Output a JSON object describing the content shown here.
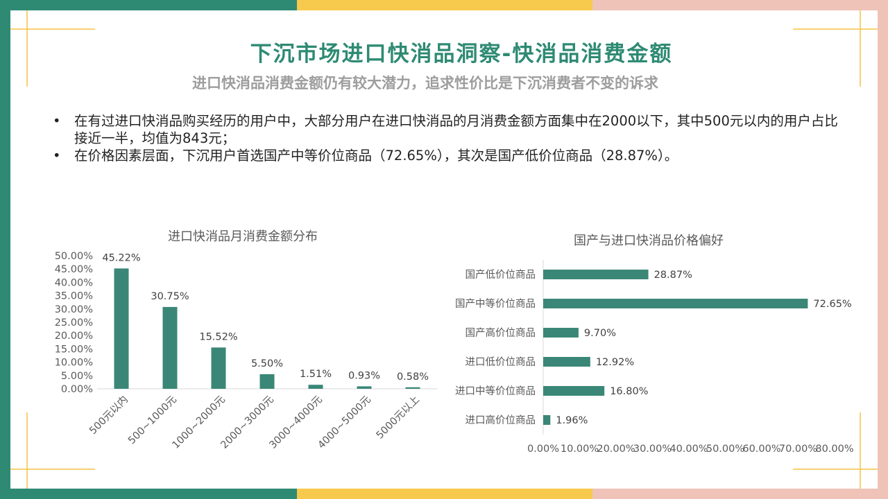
{
  "colors": {
    "teal": "#2e8a73",
    "bar": "#3a8777",
    "yellow": "#f7c94c",
    "pink": "#efc3b8",
    "gold_line": "#f5c242"
  },
  "title": "下沉市场进口快消品洞察-快消品消费金额",
  "subtitle": "进口快消品消费金额仍有较大潜力，追求性价比是下沉消费者不变的诉求",
  "bullets": [
    "在有过进口快消品购买经历的用户中，大部分用户在进口快消品的月消费金额方面集中在2000以下，其中500元以内的用户占比接近一半，均值为843元；",
    "在价格因素层面，下沉用户首选国产中等价位商品（72.65%），其次是国产低价位商品（28.87%）。"
  ],
  "bullet_symbol": "•",
  "chart_data": [
    {
      "type": "bar",
      "title": "进口快消品月消费金额分布",
      "categories": [
        "500元以内",
        "500~1000元",
        "1000~2000元",
        "2000~3000元",
        "3000~4000元",
        "4000~5000元",
        "5000元以上"
      ],
      "values": [
        45.22,
        30.75,
        15.52,
        5.5,
        1.51,
        0.93,
        0.58
      ],
      "data_labels": [
        "45.22%",
        "30.75%",
        "15.52%",
        "5.50%",
        "1.51%",
        "0.93%",
        "0.58%"
      ],
      "y_ticks": [
        "0.00%",
        "5.00%",
        "10.00%",
        "15.00%",
        "20.00%",
        "25.00%",
        "30.00%",
        "35.00%",
        "40.00%",
        "45.00%",
        "50.00%"
      ],
      "ylim": [
        0,
        50
      ],
      "xlabel": "",
      "ylabel": ""
    },
    {
      "type": "bar",
      "orientation": "horizontal",
      "title": "国产与进口快消品价格偏好",
      "categories": [
        "国产低价位商品",
        "国产中等价位商品",
        "国产高价位商品",
        "进口低价位商品",
        "进口中等价位商品",
        "进口高价位商品"
      ],
      "values": [
        28.87,
        72.65,
        9.7,
        12.92,
        16.8,
        1.96
      ],
      "data_labels": [
        "28.87%",
        "72.65%",
        "9.70%",
        "12.92%",
        "16.80%",
        "1.96%"
      ],
      "x_ticks": [
        "0.00%",
        "10.00%",
        "20.00%",
        "30.00%",
        "40.00%",
        "50.00%",
        "60.00%",
        "70.00%",
        "80.00%"
      ],
      "xlim": [
        0,
        80
      ],
      "xlabel": "",
      "ylabel": ""
    }
  ]
}
